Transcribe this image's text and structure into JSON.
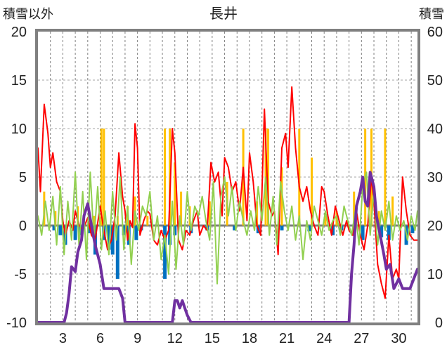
{
  "chart_data": {
    "type": "line",
    "title": "長井",
    "ylabel_left": "積雪以外",
    "ylabel_right": "積雪",
    "ylim_left": [
      -10,
      20
    ],
    "ylim_right": [
      0,
      60
    ],
    "yticks_left": [
      "20",
      "15",
      "10",
      "5",
      "0",
      "-5",
      "-10"
    ],
    "yticks_right": [
      "60",
      "50",
      "40",
      "30",
      "20",
      "10",
      "0"
    ],
    "xlim": [
      1,
      31.5
    ],
    "xticks": [
      "3",
      "6",
      "9",
      "12",
      "15",
      "18",
      "21",
      "24",
      "27",
      "30"
    ],
    "xtick_values": [
      3,
      6,
      9,
      12,
      15,
      18,
      21,
      24,
      27,
      30
    ],
    "grid": true,
    "colors": {
      "temperature": "#ff0000",
      "temperature_low": "#92d050",
      "precipitation": "#ffc000",
      "sunshine": "#0070c0",
      "snow_depth": "#7030a0",
      "frame": "#808080"
    },
    "series": [
      {
        "key": "temperature",
        "axis": "left",
        "x": [
          1.0,
          1.2,
          1.5,
          1.8,
          2.0,
          2.2,
          2.5,
          2.8,
          3.0,
          3.2,
          3.5,
          3.8,
          4.0,
          4.3,
          4.6,
          5.0,
          5.3,
          5.6,
          6.0,
          6.3,
          6.6,
          6.9,
          7.2,
          7.5,
          7.8,
          8.0,
          8.2,
          8.4,
          8.6,
          8.8,
          9.0,
          9.2,
          9.5,
          9.8,
          10.0,
          10.3,
          10.6,
          10.9,
          11.2,
          11.5,
          11.8,
          12.0,
          12.3,
          12.6,
          12.9,
          13.2,
          13.5,
          13.8,
          14.0,
          14.3,
          14.6,
          14.9,
          15.2,
          15.5,
          15.8,
          16.0,
          16.3,
          16.6,
          16.9,
          17.2,
          17.5,
          17.8,
          18.0,
          18.3,
          18.6,
          18.9,
          19.2,
          19.5,
          19.8,
          20.0,
          20.3,
          20.6,
          20.9,
          21.1,
          21.4,
          21.7,
          22.0,
          22.3,
          22.6,
          22.9,
          23.2,
          23.5,
          23.8,
          24.0,
          24.3,
          24.6,
          24.9,
          25.2,
          25.5,
          25.8,
          26.0,
          26.3,
          26.6,
          26.9,
          27.2,
          27.5,
          27.8,
          28.0,
          28.3,
          28.6,
          28.9,
          29.2,
          29.5,
          29.8,
          30.0,
          30.3,
          30.6,
          30.9,
          31.2,
          31.5
        ],
        "y": [
          8.0,
          3.5,
          12.5,
          9.5,
          6.0,
          7.5,
          4.5,
          3.5,
          0.5,
          -1.0,
          0.5,
          -0.5,
          1.5,
          0.0,
          -0.5,
          0.8,
          -1.0,
          -1.5,
          2.0,
          -0.5,
          -2.5,
          -1.5,
          1.0,
          7.5,
          3.0,
          1.5,
          -1.5,
          0.5,
          -0.2,
          10.5,
          8.0,
          -1.0,
          0.5,
          1.5,
          1.2,
          -1.5,
          -2.0,
          -0.5,
          -1.5,
          -0.5,
          10.0,
          7.5,
          -1.5,
          -2.5,
          -0.5,
          -1.0,
          0.5,
          1.5,
          -1.0,
          0.0,
          -0.5,
          6.5,
          4.5,
          5.5,
          1.0,
          7.0,
          6.0,
          3.5,
          4.5,
          1.5,
          6.0,
          0.5,
          7.5,
          4.5,
          0.0,
          -1.0,
          12.0,
          2.5,
          1.0,
          1.5,
          -3.0,
          8.0,
          9.5,
          6.0,
          14.3,
          8.0,
          4.0,
          2.5,
          4.0,
          1.5,
          0.0,
          -1.0,
          4.0,
          3.5,
          1.0,
          -1.0,
          2.0,
          0.5,
          -1.0,
          0.5,
          -0.5,
          -1.0,
          1.5,
          -1.0,
          -2.5,
          0.0,
          5.0,
          2.5,
          -4.0,
          -6.0,
          -7.5,
          -1.0,
          -5.5,
          -4.5,
          -5.5,
          5.0,
          1.5,
          -1.0,
          -1.5,
          -1.5
        ]
      },
      {
        "key": "temperature_low",
        "axis": "left",
        "x": [
          1.0,
          1.3,
          1.6,
          1.9,
          2.2,
          2.5,
          2.8,
          3.1,
          3.4,
          3.7,
          4.0,
          4.3,
          4.6,
          4.9,
          5.2,
          5.5,
          5.8,
          6.1,
          6.4,
          6.7,
          7.0,
          7.3,
          7.6,
          7.9,
          8.2,
          8.5,
          8.8,
          9.1,
          9.4,
          9.7,
          10.0,
          10.3,
          10.6,
          10.9,
          11.2,
          11.5,
          11.8,
          12.1,
          12.4,
          12.7,
          13.0,
          13.3,
          13.6,
          13.9,
          14.2,
          14.5,
          14.8,
          15.1,
          15.4,
          15.7,
          16.0,
          16.3,
          16.6,
          16.9,
          17.2,
          17.5,
          17.8,
          18.1,
          18.4,
          18.7,
          19.0,
          19.3,
          19.6,
          19.9,
          20.2,
          20.5,
          20.8,
          21.1,
          21.4,
          21.7,
          22.0,
          22.3,
          22.6,
          22.9,
          23.2,
          23.5,
          23.8,
          24.1,
          24.4,
          24.7,
          25.0,
          25.3,
          25.6,
          25.9,
          26.2,
          26.5,
          26.8,
          27.1,
          27.4,
          27.7,
          28.0,
          28.3,
          28.6,
          28.9,
          29.2,
          29.5,
          29.8,
          30.1,
          30.4,
          30.7,
          31.0,
          31.3,
          31.5
        ],
        "y": [
          1.0,
          -1.0,
          2.5,
          -0.5,
          3.0,
          -2.0,
          4.0,
          -3.0,
          2.5,
          -1.5,
          5.5,
          -2.0,
          3.5,
          -3.5,
          5.5,
          -1.5,
          4.0,
          -2.5,
          1.5,
          -3.0,
          3.5,
          -1.5,
          5.0,
          -2.5,
          2.0,
          -4.0,
          1.5,
          -0.5,
          2.0,
          1.0,
          3.5,
          -1.5,
          1.0,
          -3.5,
          -1.0,
          -5.0,
          2.5,
          -4.5,
          1.0,
          -2.0,
          3.5,
          -0.5,
          2.0,
          1.0,
          3.0,
          0.5,
          -1.5,
          4.5,
          -6.0,
          3.0,
          5.0,
          1.0,
          4.0,
          -0.5,
          2.5,
          0.5,
          -1.0,
          1.5,
          -0.5,
          4.0,
          0.5,
          5.0,
          -1.0,
          3.0,
          -2.0,
          4.5,
          1.5,
          -0.5,
          2.0,
          -1.5,
          1.0,
          -3.5,
          0.5,
          -1.5,
          2.0,
          0.5,
          -1.0,
          1.5,
          -0.5,
          0.5,
          1.0,
          -1.0,
          2.0,
          0.5,
          -1.0,
          1.5,
          -2.0,
          4.0,
          5.5,
          -1.0,
          3.5,
          -2.0,
          1.5,
          -0.5,
          2.5,
          -1.5,
          1.0,
          -0.5,
          0.5,
          -1.5,
          1.0,
          -0.5,
          1.5
        ]
      },
      {
        "key": "precipitation",
        "axis": "left",
        "type": "bar",
        "x": [
          1.5,
          2.4,
          4.2,
          5.5,
          6.1,
          6.3,
          7.4,
          8.2,
          8.8,
          9.8,
          11.2,
          11.6,
          12.0,
          12.5,
          13.2,
          14.8,
          16.2,
          17.5,
          18.6,
          19.3,
          19.5,
          20.6,
          22.0,
          23.0,
          24.1,
          25.0,
          26.4,
          27.3,
          27.8,
          28.4,
          28.9,
          29.5
        ],
        "y": [
          3.5,
          1.5,
          2.0,
          1.0,
          10.0,
          10.0,
          1.0,
          2.0,
          3.0,
          1.0,
          10.0,
          10.0,
          6.5,
          3.5,
          2.0,
          2.5,
          4.5,
          10.0,
          2.5,
          10.0,
          10.0,
          6.0,
          10.0,
          7.0,
          1.0,
          1.5,
          3.5,
          10.0,
          10.0,
          1.5,
          10.0,
          3.0
        ]
      },
      {
        "key": "sunshine",
        "axis": "left",
        "type": "bar",
        "x": [
          2.3,
          2.8,
          3.2,
          4.0,
          4.4,
          5.1,
          5.6,
          6.3,
          6.7,
          7.0,
          7.4,
          7.9,
          8.3,
          8.9,
          9.3,
          11.2,
          11.6,
          12.0,
          13.3,
          14.6,
          16.8,
          18.7,
          20.6,
          22.8,
          24.7,
          25.4,
          26.4,
          27.1,
          28.6,
          29.2,
          30.6,
          31.1
        ],
        "y": [
          -0.5,
          -1.0,
          -2.0,
          -1.5,
          -1.0,
          -0.8,
          -3.0,
          -1.5,
          -2.5,
          -3.0,
          -5.5,
          -1.0,
          -2.0,
          -1.5,
          -0.5,
          -5.5,
          -2.0,
          -1.0,
          -0.8,
          -0.5,
          -0.5,
          -0.8,
          -0.5,
          -0.6,
          -1.0,
          -0.5,
          -0.8,
          -1.5,
          -1.2,
          -1.5,
          -2.0,
          -0.8
        ]
      },
      {
        "key": "snow_depth",
        "axis": "right",
        "x": [
          1.0,
          3.1,
          3.3,
          3.5,
          3.7,
          4.0,
          4.2,
          4.5,
          4.7,
          5.0,
          5.3,
          5.6,
          6.0,
          6.3,
          6.6,
          6.9,
          7.2,
          7.5,
          7.8,
          8.0,
          10.0,
          10.3,
          11.8,
          12.0,
          12.2,
          12.4,
          12.6,
          12.8,
          13.0,
          13.3,
          14.0,
          26.0,
          26.2,
          26.4,
          26.6,
          26.9,
          27.1,
          27.3,
          27.5,
          27.7,
          28.0,
          28.2,
          28.5,
          28.8,
          29.0,
          29.3,
          29.6,
          30.0,
          30.3,
          30.6,
          30.9,
          31.2,
          31.5
        ],
        "y": [
          0.0,
          0.0,
          2.0,
          6.0,
          11.5,
          10.5,
          14.5,
          17.0,
          22.0,
          24.5,
          20.0,
          16.0,
          12.0,
          7.0,
          7.0,
          7.0,
          7.0,
          7.0,
          5.0,
          0.0,
          0.0,
          0.0,
          0.0,
          4.5,
          4.5,
          3.0,
          4.5,
          3.0,
          1.5,
          0.0,
          0.0,
          0.0,
          10.0,
          16.0,
          24.0,
          27.0,
          30.0,
          25.0,
          24.0,
          31.0,
          28.0,
          22.0,
          18.0,
          14.0,
          11.0,
          12.0,
          7.0,
          9.0,
          7.0,
          7.0,
          7.0,
          9.0,
          11.0
        ]
      }
    ]
  }
}
